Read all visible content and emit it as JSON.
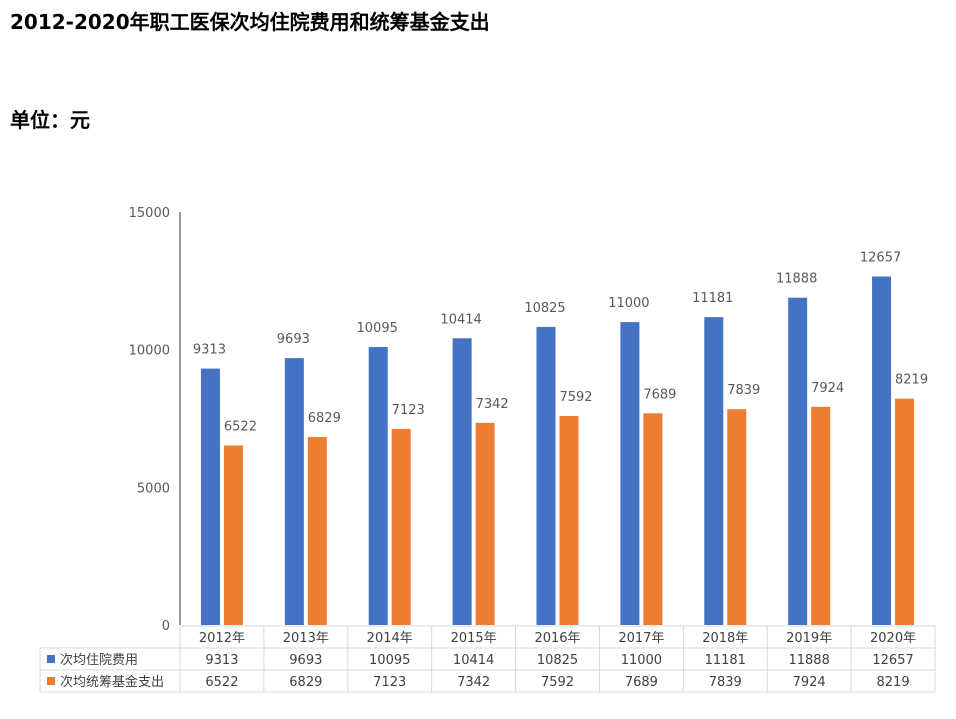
{
  "title": "2012-2020年职工医保次均住院费用和统筹基金支出",
  "unit": "单位：元",
  "chart_data": {
    "type": "bar",
    "categories": [
      "2012年",
      "2013年",
      "2014年",
      "2015年",
      "2016年",
      "2017年",
      "2018年",
      "2019年",
      "2020年"
    ],
    "series": [
      {
        "name": "次均住院费用",
        "color": "#4472C4",
        "values": [
          9313,
          9693,
          10095,
          10414,
          10825,
          11000,
          11181,
          11888,
          12657
        ]
      },
      {
        "name": "次均统筹基金支出",
        "color": "#ED7D31",
        "values": [
          6522,
          6829,
          7123,
          7342,
          7592,
          7689,
          7839,
          7924,
          8219
        ]
      }
    ],
    "yticks": [
      "0",
      "5000",
      "10000",
      "15000"
    ],
    "ylim": [
      0,
      15000
    ],
    "grid": false,
    "legend": "data-table-bottom"
  }
}
